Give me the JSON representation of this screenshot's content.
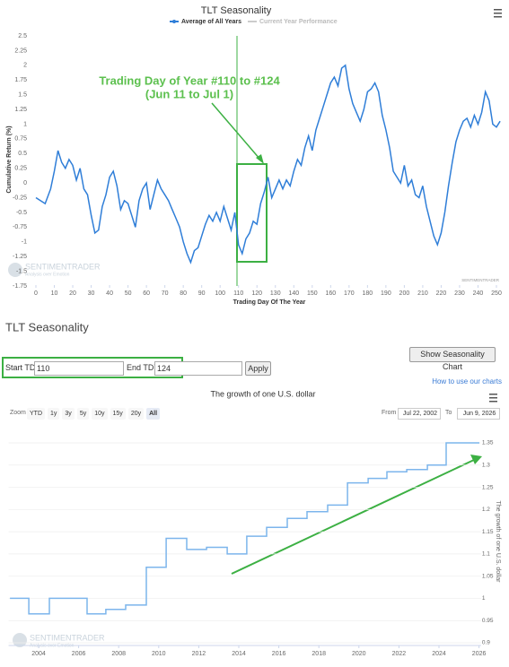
{
  "chart_data": [
    {
      "type": "line",
      "title": "TLT Seasonality",
      "xlabel": "Trading Day Of The Year",
      "ylabel": "Cumulative Return (%)",
      "series": [
        {
          "name": "Average of All Years",
          "color": "#2f7ed8",
          "x": [
            0,
            5,
            8,
            10,
            12,
            14,
            16,
            18,
            20,
            22,
            24,
            26,
            28,
            30,
            32,
            34,
            36,
            38,
            40,
            42,
            44,
            46,
            48,
            50,
            52,
            54,
            56,
            58,
            60,
            62,
            64,
            66,
            68,
            70,
            72,
            74,
            76,
            78,
            80,
            82,
            84,
            86,
            88,
            90,
            92,
            94,
            96,
            98,
            100,
            102,
            104,
            106,
            108,
            110,
            112,
            114,
            116,
            118,
            120,
            122,
            124,
            126,
            128,
            130,
            132,
            134,
            136,
            138,
            140,
            142,
            144,
            146,
            148,
            150,
            152,
            154,
            156,
            158,
            160,
            162,
            164,
            166,
            168,
            170,
            172,
            174,
            176,
            178,
            180,
            182,
            184,
            186,
            188,
            190,
            192,
            194,
            196,
            198,
            200,
            202,
            204,
            206,
            208,
            210,
            212,
            214,
            216,
            218,
            220,
            222,
            224,
            226,
            228,
            230,
            232,
            234,
            236,
            238,
            240,
            242,
            244,
            246,
            248,
            250,
            252
          ],
          "values": [
            -0.25,
            -0.35,
            -0.1,
            0.2,
            0.55,
            0.35,
            0.25,
            0.4,
            0.3,
            0.05,
            0.25,
            -0.1,
            -0.2,
            -0.55,
            -0.85,
            -0.8,
            -0.4,
            -0.2,
            0.1,
            0.2,
            -0.05,
            -0.45,
            -0.3,
            -0.35,
            -0.55,
            -0.75,
            -0.3,
            -0.1,
            0.0,
            -0.45,
            -0.2,
            0.05,
            -0.1,
            -0.2,
            -0.3,
            -0.45,
            -0.6,
            -0.75,
            -1.0,
            -1.2,
            -1.35,
            -1.15,
            -1.1,
            -0.9,
            -0.7,
            -0.55,
            -0.65,
            -0.5,
            -0.65,
            -0.4,
            -0.6,
            -0.8,
            -0.5,
            -1.05,
            -1.2,
            -0.95,
            -0.85,
            -0.65,
            -0.7,
            -0.35,
            -0.15,
            0.1,
            -0.25,
            -0.1,
            0.05,
            -0.1,
            0.05,
            -0.05,
            0.2,
            0.4,
            0.3,
            0.6,
            0.8,
            0.55,
            0.9,
            1.1,
            1.3,
            1.5,
            1.7,
            1.8,
            1.65,
            1.95,
            2.0,
            1.6,
            1.35,
            1.2,
            1.05,
            1.25,
            1.55,
            1.6,
            1.7,
            1.55,
            1.15,
            0.9,
            0.6,
            0.2,
            0.1,
            0.0,
            0.3,
            -0.05,
            0.05,
            -0.2,
            -0.25,
            -0.05,
            -0.4,
            -0.65,
            -0.9,
            -1.05,
            -0.85,
            -0.5,
            -0.05,
            0.35,
            0.7,
            0.9,
            1.05,
            1.1,
            0.95,
            1.15,
            1.0,
            1.2,
            1.55,
            1.4,
            1.0,
            0.95,
            1.05
          ]
        },
        {
          "name": "Current Year Performance",
          "color": "#cccccc",
          "x": [],
          "values": []
        }
      ],
      "xlim": [
        0,
        254
      ],
      "xticks": [
        0,
        10,
        20,
        30,
        40,
        50,
        60,
        70,
        80,
        90,
        100,
        110,
        120,
        130,
        140,
        150,
        160,
        170,
        180,
        190,
        200,
        210,
        220,
        230,
        240,
        250
      ],
      "ylim": [
        -1.75,
        2.5
      ],
      "yticks": [
        2.5,
        2.25,
        2,
        1.75,
        1.5,
        1.25,
        1,
        0.75,
        0.5,
        0.25,
        0,
        -0.25,
        -0.5,
        -0.75,
        -1,
        -1.25,
        -1.5,
        -1.75
      ],
      "grid": false,
      "annotations": [
        "Trading Day of Year #110 to #124",
        "(Jun 11 to Jul 1)"
      ],
      "watermark": [
        "SENTIMENTRADER",
        "Analysis over Emotion",
        "SENTIMENTRADER"
      ]
    },
    {
      "type": "line",
      "title": "The growth of one U.S. dollar",
      "ylabel": "The growth of one U.S. dollar",
      "color": "#7cb5ec",
      "x": [
        2002.57,
        2003.51,
        2003.51,
        2004.54,
        2004.54,
        2006.42,
        2006.42,
        2007.36,
        2007.36,
        2008.35,
        2008.35,
        2009.38,
        2009.38,
        2010.37,
        2010.37,
        2011.4,
        2011.4,
        2012.39,
        2012.39,
        2013.42,
        2013.42,
        2014.4,
        2014.4,
        2015.39,
        2015.39,
        2016.42,
        2016.42,
        2017.41,
        2017.41,
        2018.44,
        2018.44,
        2019.43,
        2019.43,
        2020.46,
        2020.46,
        2021.4,
        2021.4,
        2022.39,
        2022.39,
        2023.42,
        2023.42,
        2024.36,
        2024.36,
        2026.02
      ],
      "values": [
        1.0,
        1.0,
        0.965,
        0.965,
        1.0,
        1.0,
        0.965,
        0.965,
        0.975,
        0.975,
        0.985,
        0.985,
        1.07,
        1.07,
        1.135,
        1.135,
        1.11,
        1.11,
        1.115,
        1.115,
        1.1,
        1.1,
        1.14,
        1.14,
        1.16,
        1.16,
        1.18,
        1.18,
        1.195,
        1.195,
        1.21,
        1.21,
        1.26,
        1.26,
        1.27,
        1.27,
        1.285,
        1.285,
        1.29,
        1.29,
        1.3,
        1.3,
        1.35,
        1.35
      ],
      "xlim": [
        2002.5,
        2026.1
      ],
      "xticks": [
        2004,
        2006,
        2008,
        2010,
        2012,
        2014,
        2016,
        2018,
        2020,
        2022,
        2024,
        2026
      ],
      "ylim": [
        0.9,
        1.35
      ],
      "yticks": [
        1.35,
        1.3,
        1.25,
        1.2,
        1.15,
        1.1,
        1.05,
        1,
        0.95,
        0.9
      ],
      "grid": true,
      "watermark": [
        "SENTIMENTRADER",
        "Analysis over Emotion"
      ]
    }
  ],
  "page": {
    "header": "TLT Seasonality",
    "show_button": "Show Seasonality Chart",
    "start_label": "Start TDY:",
    "start_value": 110,
    "end_label": "End TDY:",
    "end_value": 124,
    "apply": "Apply",
    "help_link": "How to use our charts",
    "zoom_label": "Zoom",
    "zoom_options": [
      "YTD",
      "1y",
      "3y",
      "5y",
      "10y",
      "15y",
      "20y",
      "All"
    ],
    "from_label": "From",
    "from_date": "Jul 22, 2002",
    "to_label": "To",
    "to_date": "Jun 9, 2026"
  }
}
